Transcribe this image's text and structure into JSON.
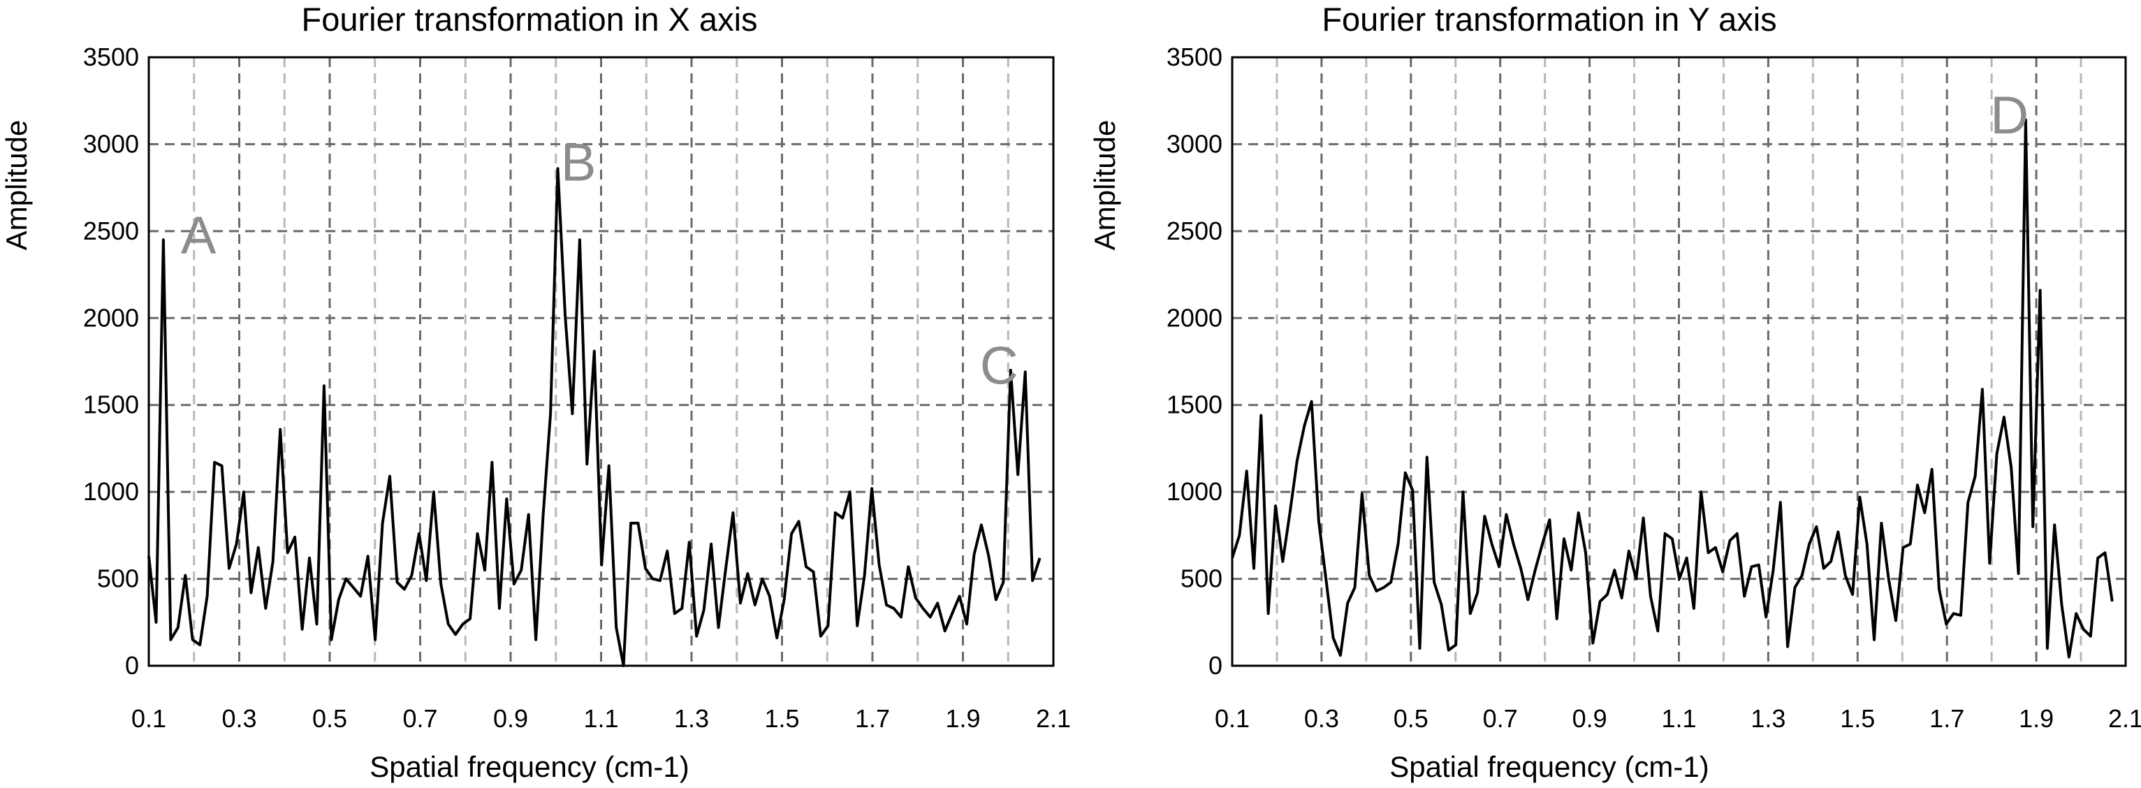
{
  "chart_data": [
    {
      "type": "line",
      "title": "Fourier transformation in X axis",
      "xlabel": "Spatial frequency (cm-1)",
      "ylabel": "Amplitude",
      "xlim": [
        0.1,
        2.1
      ],
      "ylim": [
        0,
        3500
      ],
      "xticks": [
        "0.1",
        "0.3",
        "0.5",
        "0.7",
        "0.9",
        "1.1",
        "1.3",
        "1.5",
        "1.7",
        "1.9",
        "2.1"
      ],
      "yticks": [
        "0",
        "500",
        "1000",
        "1500",
        "2000",
        "2500",
        "3000",
        "3500"
      ],
      "grid": true,
      "series": [
        {
          "values": [
            630,
            250,
            2450,
            150,
            220,
            520,
            150,
            120,
            400,
            1170,
            1150,
            560,
            700,
            1000,
            420,
            680,
            330,
            600,
            1360,
            650,
            740,
            210,
            620,
            240,
            1610,
            150,
            380,
            500,
            450,
            400,
            630,
            150,
            820,
            1090,
            480,
            440,
            520,
            760,
            490,
            1000,
            470,
            240,
            180,
            240,
            270,
            760,
            550,
            1170,
            330,
            960,
            470,
            550,
            870,
            150,
            870,
            1450,
            2860,
            2020,
            1450,
            2450,
            1160,
            1810,
            580,
            1150,
            220,
            0,
            820,
            820,
            560,
            500,
            490,
            660,
            300,
            330,
            710,
            170,
            320,
            700,
            220,
            560,
            880,
            360,
            530,
            350,
            500,
            400,
            160,
            380,
            760,
            830,
            570,
            540,
            170,
            230,
            880,
            850,
            1000,
            230,
            520,
            1020,
            580,
            350,
            330,
            280,
            570,
            390,
            330,
            280,
            360,
            200,
            300,
            400,
            240,
            640,
            810,
            630,
            380,
            480,
            1700,
            1100,
            1690,
            490,
            620
          ]
        }
      ],
      "annotations": [
        {
          "text": "A",
          "x": 0.21,
          "y": 2480
        },
        {
          "text": "B",
          "x": 1.05,
          "y": 2900
        },
        {
          "text": "C",
          "x": 1.98,
          "y": 1730
        }
      ]
    },
    {
      "type": "line",
      "title": "Fourier transformation in Y axis",
      "xlabel": "Spatial frequency (cm-1)",
      "ylabel": "Amplitude",
      "xlim": [
        0.1,
        2.1
      ],
      "ylim": [
        0,
        3500
      ],
      "xticks": [
        "0.1",
        "0.3",
        "0.5",
        "0.7",
        "0.9",
        "1.1",
        "1.3",
        "1.5",
        "1.7",
        "1.9",
        "2.1"
      ],
      "yticks": [
        "0",
        "500",
        "1000",
        "1500",
        "2000",
        "2500",
        "3000",
        "3500"
      ],
      "grid": true,
      "series": [
        {
          "values": [
            620,
            750,
            1120,
            560,
            1440,
            300,
            920,
            600,
            880,
            1180,
            1380,
            1520,
            830,
            500,
            160,
            60,
            360,
            450,
            990,
            520,
            430,
            450,
            480,
            700,
            1110,
            1010,
            100,
            1200,
            480,
            350,
            90,
            120,
            1000,
            300,
            420,
            860,
            700,
            570,
            870,
            700,
            560,
            380,
            550,
            700,
            840,
            270,
            730,
            550,
            880,
            650,
            130,
            370,
            410,
            550,
            390,
            660,
            500,
            850,
            400,
            200,
            760,
            730,
            500,
            620,
            330,
            1000,
            650,
            680,
            540,
            720,
            760,
            400,
            570,
            580,
            280,
            550,
            940,
            110,
            450,
            520,
            700,
            800,
            560,
            600,
            770,
            520,
            410,
            970,
            700,
            150,
            820,
            500,
            260,
            680,
            700,
            1040,
            880,
            1130,
            440,
            240,
            300,
            290,
            940,
            1090,
            1590,
            590,
            1220,
            1430,
            1140,
            530,
            3140,
            800,
            2160,
            100,
            810,
            350,
            50,
            300,
            210,
            170,
            620,
            650,
            370
          ]
        }
      ],
      "annotations": [
        {
          "text": "D",
          "x": 1.84,
          "y": 3170
        }
      ]
    }
  ]
}
